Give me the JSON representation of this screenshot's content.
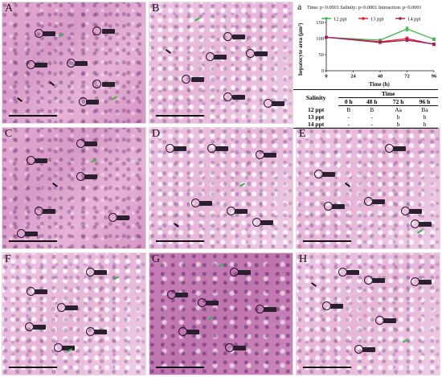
{
  "panels": [
    {
      "label": "A"
    },
    {
      "label": "B"
    },
    {
      "label": "C"
    },
    {
      "label": "D"
    },
    {
      "label": "E"
    },
    {
      "label": "F"
    },
    {
      "label": "G"
    },
    {
      "label": "H"
    }
  ],
  "chart_data": {
    "type": "line",
    "panel_label": "a",
    "stats_text": "Time: p<0.0001    Salinity: p<0.0001    Interaction: p<0.0001",
    "legend": [
      {
        "name": "12 ppt",
        "color": "#3bb54a"
      },
      {
        "name": "13 ppt",
        "color": "#e31a1c"
      },
      {
        "name": "14 ppt",
        "color": "#9e1f63"
      }
    ],
    "xlabel": "Time (h)",
    "ylabel": "hepatocyte area (μm²)",
    "x": [
      0,
      48,
      72,
      96
    ],
    "xticks": [
      "0",
      "24",
      "48",
      "72",
      "96"
    ],
    "xlim": [
      0,
      96
    ],
    "ylim": [
      0,
      150
    ],
    "yticks": [
      "0",
      "50",
      "100",
      "150"
    ],
    "series": [
      {
        "name": "12 ppt",
        "color": "#3bb54a",
        "values": [
          104,
          95,
          130,
          98
        ],
        "errors": [
          3,
          3,
          6,
          4
        ]
      },
      {
        "name": "13 ppt",
        "color": "#e31a1c",
        "values": [
          104,
          90,
          100,
          82
        ],
        "errors": [
          3,
          3,
          5,
          4
        ]
      },
      {
        "name": "14 ppt",
        "color": "#9e1f63",
        "values": [
          104,
          88,
          95,
          83
        ],
        "errors": [
          3,
          3,
          4,
          3
        ]
      }
    ],
    "table": {
      "header_group": "Time",
      "row_header": "Salinity",
      "columns": [
        "0 h",
        "48 h",
        "72 h",
        "96 h"
      ],
      "rows": [
        {
          "label": "12 ppt",
          "cells": [
            "B",
            "B",
            "Aa",
            "Ba"
          ]
        },
        {
          "label": "13 ppt",
          "cells": [
            "-",
            "-",
            "b",
            "b"
          ]
        },
        {
          "label": "14 ppt",
          "cells": [
            "-",
            "-",
            "b",
            "b"
          ]
        }
      ]
    }
  }
}
